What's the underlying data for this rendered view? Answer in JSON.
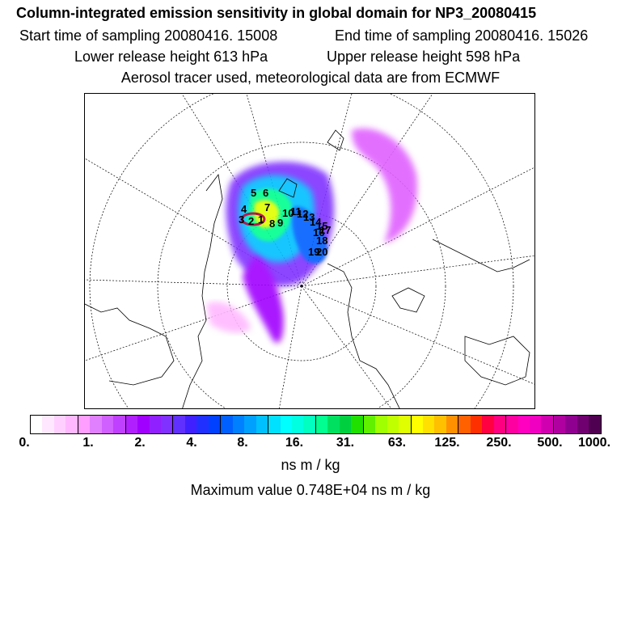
{
  "header": {
    "title": "Column-integrated emission sensitivity in global domain for NP3_20080415",
    "start_label": "Start time of sampling 20080416. 15008",
    "end_label": "End time of sampling 20080416. 15026",
    "lower_label": "Lower release height  613 hPa",
    "upper_label": "Upper release height  598 hPa",
    "tracer_line": "Aerosol tracer used, meteorological data are from ECMWF"
  },
  "map": {
    "projection": "polar-stereographic-north",
    "point_labels": [
      "5",
      "6",
      "7",
      "4",
      "3",
      "2",
      "1",
      "8",
      "9",
      "10",
      "11",
      "12",
      "13",
      "14",
      "15",
      "16",
      "17",
      "18",
      "19",
      "20"
    ]
  },
  "colorbar": {
    "tick_labels": [
      "0.",
      "1.",
      "2.",
      "4.",
      "8.",
      "16.",
      "31.",
      "63.",
      "125.",
      "250.",
      "500.",
      "1000."
    ],
    "colors": [
      "#ffffff",
      "#ffe8ff",
      "#ffd0ff",
      "#ffb8ff",
      "#ff9eff",
      "#e080ff",
      "#d060ff",
      "#c040ff",
      "#b020ff",
      "#a000ff",
      "#9020ff",
      "#8030ff",
      "#6030ff",
      "#4020ff",
      "#2030ff",
      "#0040ff",
      "#0060ff",
      "#0080ff",
      "#00a0ff",
      "#00c0ff",
      "#00e0ff",
      "#00ffff",
      "#00ffe0",
      "#00ffc0",
      "#00ff90",
      "#00e060",
      "#00d040",
      "#20e000",
      "#60f000",
      "#a0ff00",
      "#c0ff00",
      "#e0ff00",
      "#ffff00",
      "#ffe000",
      "#ffc000",
      "#ff9000",
      "#ff6000",
      "#ff3000",
      "#ff0040",
      "#ff0080",
      "#ff00a0",
      "#ff00c0",
      "#f000c0",
      "#d000b0",
      "#b000a0",
      "#900090",
      "#700070",
      "#500050"
    ],
    "unit": "ns m / kg",
    "max_text": "Maximum value  0.748E+04 ns m / kg"
  }
}
